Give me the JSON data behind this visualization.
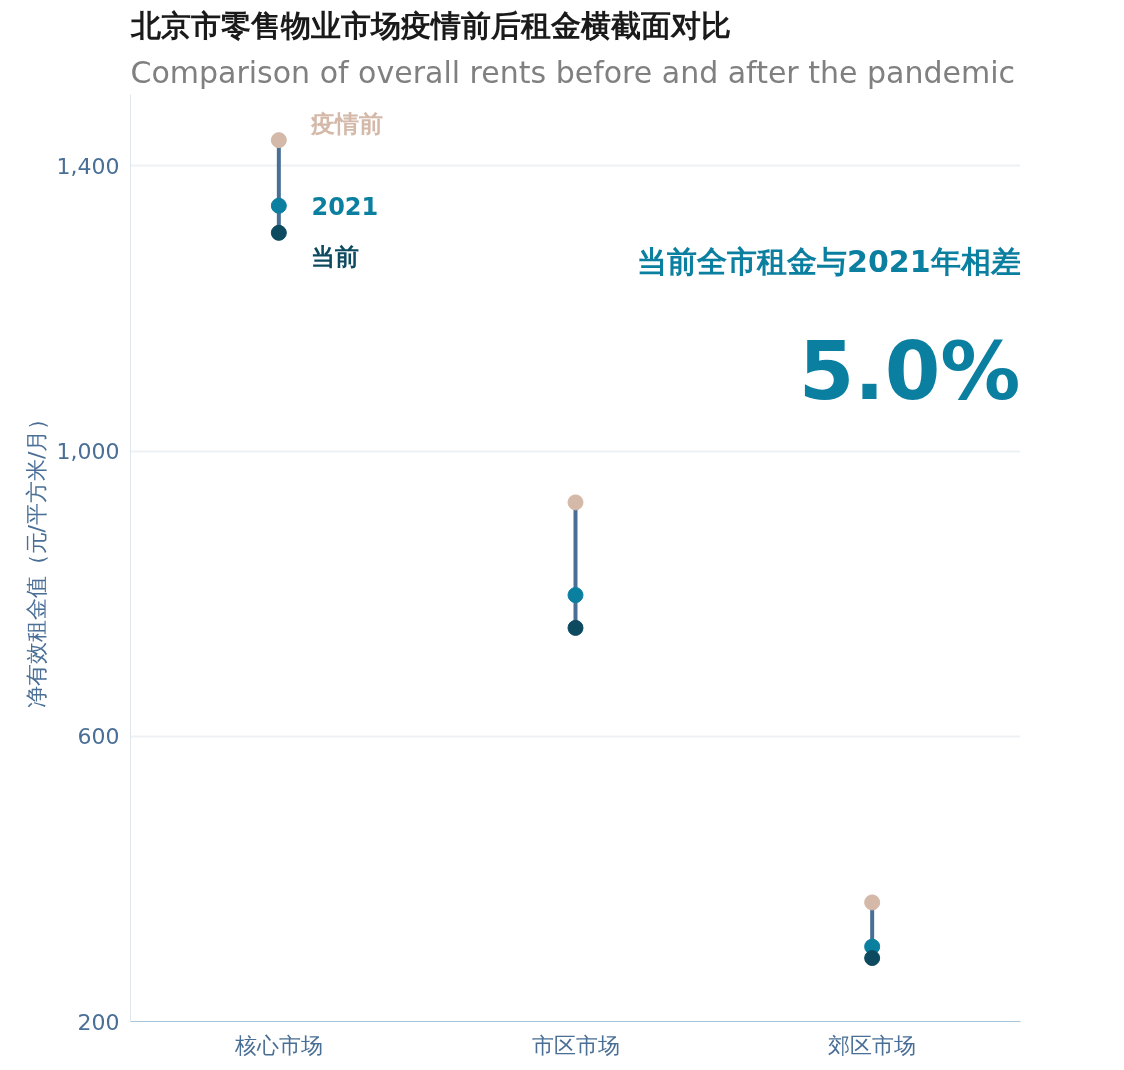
{
  "chart_data": {
    "type": "scatter",
    "title": "北京市零售物业市场疫情前后租金横截面对比",
    "subtitle": "Comparison of overall rents before and after the pandemic",
    "ylabel": "净有效租金值（元/平方米/月）",
    "categories": [
      "核心市场",
      "市区市场",
      "郊区市场"
    ],
    "series": [
      {
        "name": "疫情前",
        "color": "#d4b8a8",
        "values": [
          1436,
          928,
          367
        ]
      },
      {
        "name": "2021",
        "color": "#0a7fa0",
        "values": [
          1344,
          798,
          305
        ]
      },
      {
        "name": "当前",
        "color": "#0d4a60",
        "values": [
          1306,
          752,
          289
        ]
      }
    ],
    "ylim": [
      200,
      1500
    ],
    "yticks": [
      200,
      600,
      {
        "value": 1000,
        "label": "1,000"
      },
      {
        "value": 1400,
        "label": "1,400"
      }
    ],
    "grid": "y",
    "marker": "circle",
    "annotations": [
      "当前全市租金与2021年相差",
      "5.0%"
    ]
  }
}
